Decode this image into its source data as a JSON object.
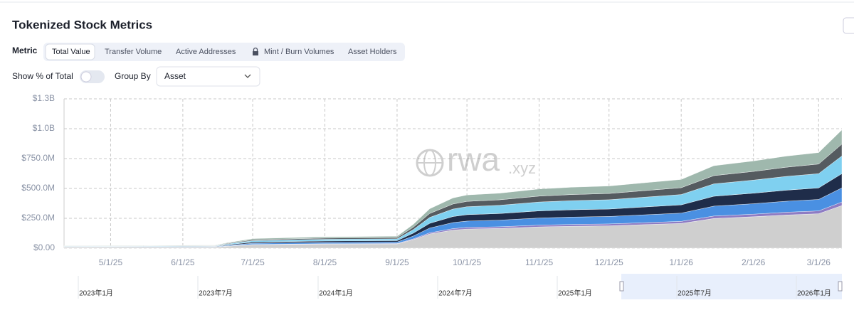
{
  "header": {
    "title": "Tokenized Stock Metrics",
    "metric_label": "Metric",
    "metric_tabs": [
      "Total Value",
      "Transfer Volume",
      "Active Addresses",
      "Mint / Burn Volumes",
      "Asset Holders"
    ],
    "toggle_label": "Show % of Total",
    "group_by_label": "Group By",
    "group_by_value": "Asset"
  },
  "watermark": [
    "rwa",
    ".xyz"
  ],
  "navigator_labels": [
    "2023年1月",
    "2023年7月",
    "2024年1月",
    "2024年7月",
    "2025年1月",
    "2025年7月",
    "2026年1月"
  ],
  "chart_data": {
    "type": "stacked-area",
    "x": [
      "2025-04-11",
      "2025-05-15",
      "2025-06-15",
      "2025-06-20",
      "2025-07-01",
      "2025-08-01",
      "2025-09-01",
      "2025-09-08",
      "2025-09-15",
      "2025-09-25",
      "2025-10-01",
      "2025-10-15",
      "2025-11-01",
      "2025-11-15",
      "2025-12-01",
      "2025-12-15",
      "2026-01-01",
      "2026-01-15",
      "2026-02-01",
      "2026-02-15",
      "2026-03-01",
      "2026-03-11"
    ],
    "series": [
      {
        "color": "#cfcfcf",
        "values": [
          7.2,
          7.9,
          9,
          16.2,
          28.8,
          34.2,
          36,
          72,
          118.8,
          151.2,
          160.2,
          165.6,
          178.2,
          183.6,
          187.2,
          196.2,
          207,
          248.4,
          262.8,
          277.2,
          288,
          356.4
        ]
      },
      {
        "color": "#8e7cc3",
        "values": [
          0.6,
          0.7,
          0.8,
          1.4,
          2.4,
          2.9,
          3,
          6,
          9.9,
          12.6,
          13.4,
          13.8,
          14.9,
          15.3,
          15.6,
          16.4,
          17.3,
          20.7,
          21.9,
          23.1,
          24,
          29.7
        ]
      },
      {
        "color": "#4a90e2",
        "values": [
          2.4,
          2.6,
          3,
          5.4,
          9.6,
          11.4,
          12,
          24,
          39.6,
          50.4,
          53.4,
          55.2,
          59.4,
          61.2,
          62.4,
          65.4,
          69,
          82.8,
          87.6,
          92.4,
          96,
          118.8
        ]
      },
      {
        "color": "#1f2d4a",
        "values": [
          2.4,
          2.6,
          3,
          5.4,
          9.6,
          11.4,
          12,
          24,
          39.6,
          50.4,
          53.4,
          55.2,
          59.4,
          61.2,
          62.4,
          65.4,
          69,
          82.8,
          87.6,
          92.4,
          96,
          118.8
        ]
      },
      {
        "color": "#7fd0f0",
        "values": [
          3,
          3.3,
          3.8,
          6.8,
          12,
          14.3,
          15,
          30,
          49.5,
          63,
          66.8,
          69,
          74.3,
          76.5,
          78,
          81.8,
          86.3,
          103.5,
          109.5,
          115.5,
          120,
          148.5
        ]
      },
      {
        "color": "#555b60",
        "values": [
          2,
          2.2,
          2.5,
          4.5,
          8,
          9.5,
          10,
          20,
          33,
          42,
          44.5,
          46,
          49.5,
          51,
          52,
          54.5,
          57.5,
          69,
          73,
          77,
          80,
          99
        ]
      },
      {
        "color": "#9fb8ad",
        "values": [
          2.4,
          2.6,
          3,
          5.4,
          9.6,
          11.4,
          12,
          24,
          39.6,
          50.4,
          53.4,
          55.2,
          59.4,
          61.2,
          62.4,
          65.4,
          69,
          82.8,
          87.6,
          92.4,
          96,
          118.8
        ]
      }
    ],
    "xlim": [
      "2025-04-11",
      "2026-03-11"
    ],
    "xticks": [
      {
        "value": "2025-05-01",
        "label": "5/1/25"
      },
      {
        "value": "2025-06-01",
        "label": "6/1/25"
      },
      {
        "value": "2025-07-01",
        "label": "7/1/25"
      },
      {
        "value": "2025-08-01",
        "label": "8/1/25"
      },
      {
        "value": "2025-09-01",
        "label": "9/1/25"
      },
      {
        "value": "2025-10-01",
        "label": "10/1/25"
      },
      {
        "value": "2025-11-01",
        "label": "11/1/25"
      },
      {
        "value": "2025-12-01",
        "label": "12/1/25"
      },
      {
        "value": "2026-01-01",
        "label": "1/1/26"
      },
      {
        "value": "2026-02-01",
        "label": "2/1/26"
      },
      {
        "value": "2026-03-01",
        "label": "3/1/26"
      }
    ],
    "ylim": [
      0,
      1250
    ],
    "yticks": [
      {
        "value": 0,
        "label": "$0.00"
      },
      {
        "value": 250,
        "label": "$250.0M"
      },
      {
        "value": 500,
        "label": "$500.0M"
      },
      {
        "value": 750,
        "label": "$750.0M"
      },
      {
        "value": 1000,
        "label": "$1.0B"
      },
      {
        "value": 1250,
        "label": "$1.3B"
      }
    ],
    "grid": true
  }
}
